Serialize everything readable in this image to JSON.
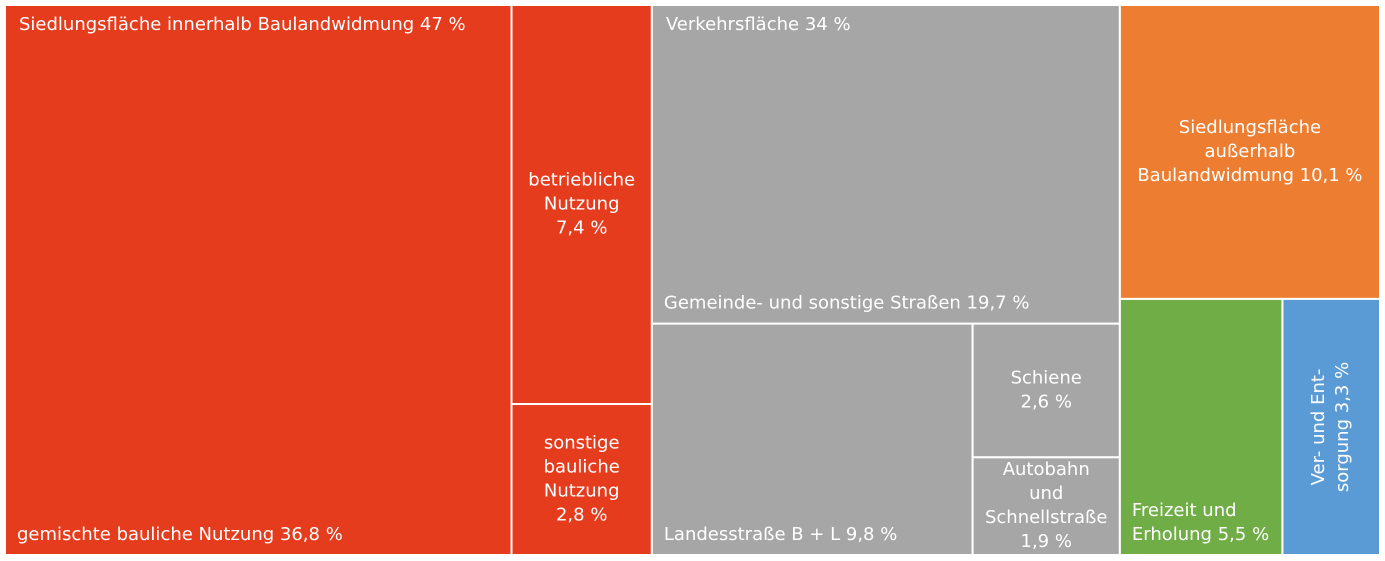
{
  "chart_data": {
    "type": "treemap",
    "groups": [
      {
        "name": [
          "Siedlungsfläche innerhalb Baulandwidmung"
        ],
        "value": 47,
        "value_label": "47 %",
        "color": "#e63c1e",
        "children": [
          {
            "name": [
              "gemischte bauliche Nutzung"
            ],
            "value": 36.8,
            "value_label": "36,8 %"
          },
          {
            "name": [
              "betriebliche",
              "Nutzung"
            ],
            "value": 7.4,
            "value_label": "7,4 %"
          },
          {
            "name": [
              "sonstige",
              "bauliche",
              "Nutzung"
            ],
            "value": 2.8,
            "value_label": "2,8 %"
          }
        ]
      },
      {
        "name": [
          "Verkehrsfläche"
        ],
        "value": 34,
        "value_label": "34 %",
        "color": "#a6a6a6",
        "children": [
          {
            "name": [
              "Gemeinde- und sonstige Straßen"
            ],
            "value": 19.7,
            "value_label": "19,7 %"
          },
          {
            "name": [
              "Landesstraße B + L"
            ],
            "value": 9.8,
            "value_label": "9,8 %"
          },
          {
            "name": [
              "Schiene"
            ],
            "value": 2.6,
            "value_label": "2,6 %"
          },
          {
            "name": [
              "Autobahn",
              "und",
              "Schnellstraße"
            ],
            "value": 1.9,
            "value_label": "1,9 %"
          }
        ]
      },
      {
        "name": [
          "Siedlungsfläche",
          "außerhalb",
          "Baulandwidmung"
        ],
        "value": 10.1,
        "value_label": "10,1 %",
        "color": "#ed7d31"
      },
      {
        "name": [
          "Freizeit und",
          "Erholung"
        ],
        "value": 5.5,
        "value_label": "5,5 %",
        "color": "#70ad47"
      },
      {
        "name": [
          "Ver- und Ent-",
          "sorgung"
        ],
        "value": 3.3,
        "value_label": "3,3 %",
        "color": "#5b9bd5"
      }
    ]
  }
}
